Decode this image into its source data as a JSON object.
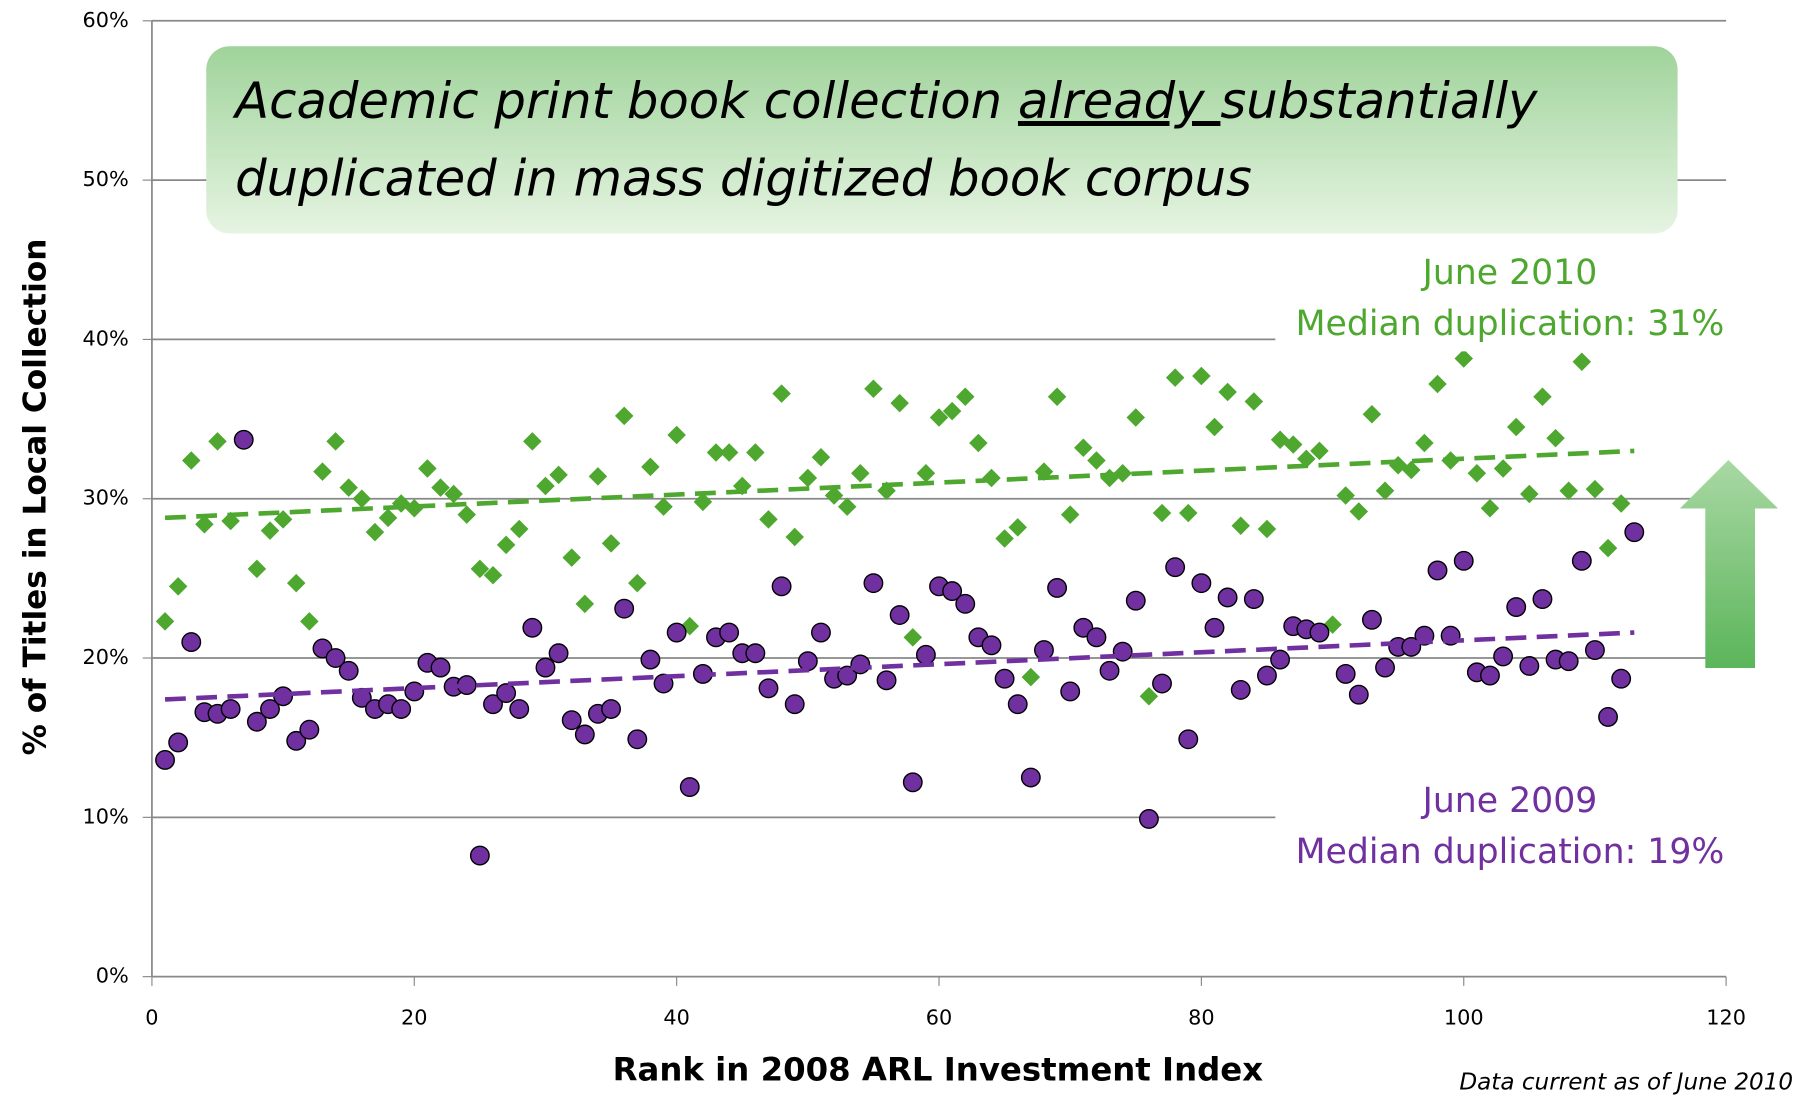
{
  "chart_data": {
    "type": "scatter",
    "title_lines": [
      [
        "Academic print book collection ",
        "already ",
        "substantially"
      ],
      [
        "duplicated in mass digitized book corpus"
      ]
    ],
    "title_underlined": "already ",
    "xlabel": "Rank in 2008 ARL Investment Index",
    "ylabel": "% of Titles in Local Collection",
    "xlim": [
      0,
      120
    ],
    "xticks": [
      0,
      20,
      40,
      60,
      80,
      100,
      120
    ],
    "ylim": [
      0,
      60
    ],
    "yticks": [
      {
        "value": 0,
        "label": "0%"
      },
      {
        "value": 10,
        "label": "10%"
      },
      {
        "value": 20,
        "label": "20%"
      },
      {
        "value": 30,
        "label": "30%"
      },
      {
        "value": 40,
        "label": "40%"
      },
      {
        "value": 50,
        "label": "50%"
      },
      {
        "value": 60,
        "label": "60%"
      }
    ],
    "grid": true,
    "series": [
      {
        "name": "June 2010",
        "color": "#4ea72e",
        "marker": "diamond",
        "x": [
          1,
          2,
          3,
          4,
          5,
          6,
          8,
          9,
          10,
          11,
          12,
          13,
          14,
          15,
          16,
          17,
          18,
          19,
          20,
          21,
          22,
          23,
          24,
          25,
          26,
          27,
          28,
          29,
          30,
          31,
          32,
          33,
          34,
          35,
          36,
          37,
          38,
          39,
          40,
          41,
          42,
          43,
          44,
          45,
          46,
          47,
          48,
          49,
          50,
          51,
          52,
          53,
          54,
          55,
          56,
          57,
          58,
          59,
          60,
          61,
          62,
          63,
          64,
          65,
          66,
          67,
          68,
          69,
          70,
          71,
          72,
          73,
          74,
          75,
          76,
          77,
          78,
          79,
          80,
          81,
          82,
          83,
          84,
          85,
          86,
          87,
          88,
          89,
          90,
          91,
          92,
          93,
          94,
          95,
          96,
          97,
          98,
          99,
          100,
          101,
          102,
          103,
          104,
          105,
          106,
          107,
          108,
          109,
          110,
          111,
          112
        ],
        "values": [
          22.3,
          24.5,
          32.4,
          28.4,
          33.6,
          28.6,
          25.6,
          28.0,
          28.7,
          24.7,
          22.3,
          31.7,
          33.6,
          30.7,
          30.0,
          27.9,
          28.8,
          29.7,
          29.4,
          31.9,
          30.7,
          30.3,
          29.0,
          25.6,
          25.2,
          27.1,
          28.1,
          33.6,
          30.8,
          31.5,
          26.3,
          23.4,
          31.4,
          27.2,
          35.2,
          24.7,
          32.0,
          29.5,
          34.0,
          22.0,
          29.8,
          32.9,
          32.9,
          30.8,
          32.9,
          28.7,
          36.6,
          27.6,
          31.3,
          32.6,
          30.2,
          29.5,
          31.6,
          36.9,
          30.5,
          36.0,
          21.3,
          31.6,
          35.1,
          35.5,
          36.4,
          33.5,
          31.3,
          27.5,
          28.2,
          18.8,
          31.7,
          36.4,
          29.0,
          33.2,
          32.4,
          31.3,
          31.6,
          35.1,
          17.6,
          29.1,
          37.6,
          29.1,
          37.7,
          34.5,
          36.7,
          28.3,
          36.1,
          28.1,
          33.7,
          33.4,
          32.5,
          33.0,
          22.1,
          30.2,
          29.2,
          35.3,
          30.5,
          32.1,
          31.8,
          33.5,
          37.2,
          32.4,
          38.8,
          31.6,
          29.4,
          31.9,
          34.5,
          30.3,
          36.4,
          33.8,
          30.5,
          38.6,
          30.6,
          26.9,
          29.7
        ],
        "trend": {
          "x": [
            1,
            113
          ],
          "values": [
            28.8,
            33.0
          ]
        }
      },
      {
        "name": "June 2009",
        "color": "#7030a0",
        "marker": "circle",
        "x": [
          1,
          2,
          3,
          4,
          5,
          6,
          7,
          8,
          9,
          10,
          11,
          12,
          13,
          14,
          15,
          16,
          17,
          18,
          19,
          20,
          21,
          22,
          23,
          24,
          25,
          26,
          27,
          28,
          29,
          30,
          31,
          32,
          33,
          34,
          35,
          36,
          37,
          38,
          39,
          40,
          41,
          42,
          43,
          44,
          45,
          46,
          47,
          48,
          49,
          50,
          51,
          52,
          53,
          54,
          55,
          56,
          57,
          58,
          59,
          60,
          61,
          62,
          63,
          64,
          65,
          66,
          67,
          68,
          69,
          70,
          71,
          72,
          73,
          74,
          75,
          76,
          77,
          78,
          79,
          80,
          81,
          82,
          83,
          84,
          85,
          86,
          87,
          88,
          89,
          91,
          92,
          93,
          94,
          95,
          96,
          97,
          98,
          99,
          100,
          101,
          102,
          103,
          104,
          105,
          106,
          107,
          108,
          109,
          110,
          111,
          112,
          113
        ],
        "values": [
          13.6,
          14.7,
          21.0,
          16.6,
          16.5,
          16.8,
          33.7,
          16.0,
          16.8,
          17.6,
          14.8,
          15.5,
          20.6,
          20.0,
          19.2,
          17.5,
          16.8,
          17.1,
          16.8,
          17.9,
          19.7,
          19.4,
          18.2,
          18.3,
          7.6,
          17.1,
          17.8,
          16.8,
          21.9,
          19.4,
          20.3,
          16.1,
          15.2,
          16.5,
          16.8,
          23.1,
          14.9,
          19.9,
          18.4,
          21.6,
          11.9,
          19.0,
          21.3,
          21.6,
          20.3,
          20.3,
          18.1,
          24.5,
          17.1,
          19.8,
          21.6,
          18.7,
          18.9,
          19.6,
          24.7,
          18.6,
          22.7,
          12.2,
          20.2,
          24.5,
          24.2,
          23.4,
          21.3,
          20.8,
          18.7,
          17.1,
          12.5,
          20.5,
          24.4,
          17.9,
          21.9,
          21.3,
          19.2,
          20.4,
          23.6,
          9.9,
          18.4,
          25.7,
          14.9,
          24.7,
          21.9,
          23.8,
          18.0,
          23.7,
          18.9,
          19.9,
          22.0,
          21.8,
          21.6,
          19.0,
          17.7,
          22.4,
          19.4,
          20.7,
          20.7,
          21.4,
          25.5,
          21.4,
          26.1,
          19.1,
          18.9,
          20.1,
          23.2,
          19.5,
          23.7,
          19.9,
          19.8,
          26.1,
          20.5,
          16.3,
          18.7,
          27.9
        ],
        "trend": {
          "x": [
            1,
            113
          ],
          "values": [
            17.4,
            21.6
          ]
        }
      }
    ],
    "annotations": [
      {
        "text": "June 2010",
        "color": "#4ea72e"
      },
      {
        "text": "Median duplication: 31%",
        "color": "#4ea72e"
      },
      {
        "text": "June 2009",
        "color": "#7030a0"
      },
      {
        "text": "Median duplication: 19%",
        "color": "#7030a0"
      }
    ],
    "footnote": "Data current as of June 2010"
  }
}
